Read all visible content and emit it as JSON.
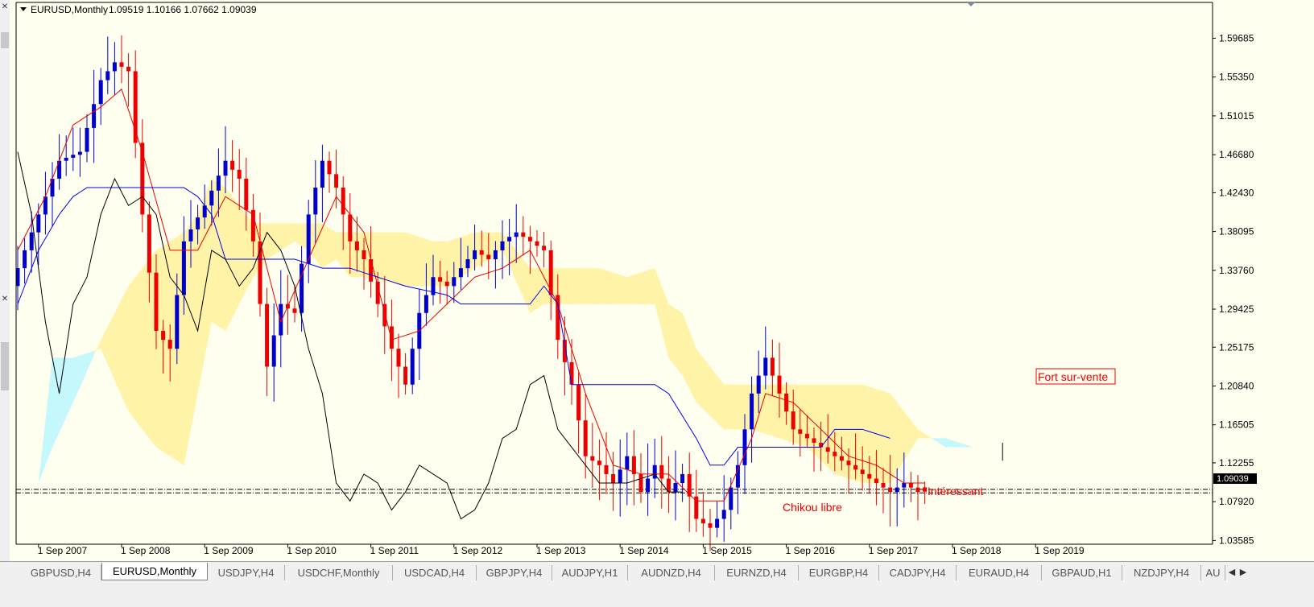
{
  "chart_header": {
    "symbol": "EURUSD,Monthly",
    "ohlc": "1.09519 1.10166 1.07662 1.09039"
  },
  "current_price_label": "1.09039",
  "tabs": [
    {
      "label": "GBPUSD,H4",
      "active": false
    },
    {
      "label": "EURUSD,Monthly",
      "active": true
    },
    {
      "label": "USDJPY,H4",
      "active": false
    },
    {
      "label": "USDCHF,Monthly",
      "active": false
    },
    {
      "label": "USDCAD,H4",
      "active": false
    },
    {
      "label": "GBPJPY,H4",
      "active": false
    },
    {
      "label": "AUDJPY,H1",
      "active": false
    },
    {
      "label": "AUDNZD,H4",
      "active": false
    },
    {
      "label": "EURNZD,H4",
      "active": false
    },
    {
      "label": "EURGBP,H4",
      "active": false
    },
    {
      "label": "CADJPY,H4",
      "active": false
    },
    {
      "label": "EURAUD,H4",
      "active": false
    },
    {
      "label": "GBPAUD,H1",
      "active": false
    },
    {
      "label": "NZDJPY,H4",
      "active": false
    },
    {
      "label": "AU",
      "active": false
    }
  ],
  "annotations": {
    "fort": "Fort sur-vente",
    "chikou": "Chikou libre",
    "interessant": "Intéressant"
  },
  "colors": {
    "bull": "#0000cc",
    "bear": "#ee0000",
    "tenkan": "#ee0000",
    "kijun": "#0000ee",
    "chikou": "#000000",
    "kumo_bear": "#fff3a8",
    "kumo_bull": "#c4f8fc",
    "background": "#fffff0"
  },
  "chart_data": {
    "type": "candlestick",
    "title": "EURUSD,Monthly",
    "xlabel": "",
    "ylabel": "",
    "ylim": [
      1.02,
      1.61
    ],
    "y_ticks": [
      "1.59685",
      "1.55350",
      "1.51015",
      "1.46680",
      "1.42430",
      "1.38095",
      "1.33760",
      "1.29425",
      "1.25175",
      "1.20840",
      "1.16505",
      "1.12255",
      "1.07920",
      "1.03585"
    ],
    "x_ticks": [
      "1 Sep 2007",
      "1 Sep 2008",
      "1 Sep 2009",
      "1 Sep 2010",
      "1 Sep 2011",
      "1 Sep 2012",
      "1 Sep 2013",
      "1 Sep 2014",
      "1 Sep 2015",
      "1 Sep 2016",
      "1 Sep 2017",
      "1 Sep 2018",
      "1 Sep 2019"
    ],
    "start": "2007-06",
    "close_anchors": [
      [
        0,
        1.34
      ],
      [
        3,
        1.4
      ],
      [
        6,
        1.46
      ],
      [
        9,
        1.47
      ],
      [
        12,
        1.55
      ],
      [
        14,
        1.57
      ],
      [
        16,
        1.56
      ],
      [
        18,
        1.4
      ],
      [
        20,
        1.27
      ],
      [
        22,
        1.25
      ],
      [
        24,
        1.37
      ],
      [
        27,
        1.41
      ],
      [
        30,
        1.46
      ],
      [
        32,
        1.44
      ],
      [
        34,
        1.37
      ],
      [
        36,
        1.23
      ],
      [
        38,
        1.3
      ],
      [
        40,
        1.29
      ],
      [
        42,
        1.4
      ],
      [
        44,
        1.46
      ],
      [
        46,
        1.43
      ],
      [
        48,
        1.37
      ],
      [
        50,
        1.35
      ],
      [
        52,
        1.3
      ],
      [
        54,
        1.25
      ],
      [
        56,
        1.21
      ],
      [
        58,
        1.29
      ],
      [
        60,
        1.33
      ],
      [
        62,
        1.32
      ],
      [
        64,
        1.34
      ],
      [
        66,
        1.36
      ],
      [
        68,
        1.35
      ],
      [
        70,
        1.37
      ],
      [
        72,
        1.38
      ],
      [
        74,
        1.37
      ],
      [
        76,
        1.36
      ],
      [
        78,
        1.26
      ],
      [
        80,
        1.21
      ],
      [
        82,
        1.13
      ],
      [
        84,
        1.12
      ],
      [
        86,
        1.1
      ],
      [
        88,
        1.13
      ],
      [
        90,
        1.09
      ],
      [
        92,
        1.12
      ],
      [
        94,
        1.09
      ],
      [
        96,
        1.11
      ],
      [
        98,
        1.06
      ],
      [
        100,
        1.05
      ],
      [
        102,
        1.07
      ],
      [
        104,
        1.12
      ],
      [
        106,
        1.2
      ],
      [
        108,
        1.24
      ],
      [
        110,
        1.2
      ],
      [
        112,
        1.16
      ],
      [
        114,
        1.15
      ],
      [
        116,
        1.14
      ],
      [
        118,
        1.13
      ],
      [
        120,
        1.12
      ],
      [
        122,
        1.11
      ],
      [
        124,
        1.1
      ],
      [
        126,
        1.09
      ],
      [
        128,
        1.1
      ],
      [
        130,
        1.09
      ],
      [
        131,
        1.09039
      ]
    ],
    "last_candle": {
      "open": 1.09519,
      "high": 1.10166,
      "low": 1.07662,
      "close": 1.09039
    },
    "lines": [
      {
        "name": "Tenkan",
        "anchors": [
          [
            0,
            1.36
          ],
          [
            4,
            1.42
          ],
          [
            8,
            1.5
          ],
          [
            12,
            1.52
          ],
          [
            15,
            1.54
          ],
          [
            18,
            1.47
          ],
          [
            22,
            1.36
          ],
          [
            26,
            1.36
          ],
          [
            30,
            1.42
          ],
          [
            34,
            1.4
          ],
          [
            38,
            1.28
          ],
          [
            42,
            1.35
          ],
          [
            46,
            1.42
          ],
          [
            50,
            1.38
          ],
          [
            54,
            1.26
          ],
          [
            58,
            1.27
          ],
          [
            62,
            1.3
          ],
          [
            66,
            1.33
          ],
          [
            70,
            1.34
          ],
          [
            74,
            1.36
          ],
          [
            78,
            1.3
          ],
          [
            82,
            1.2
          ],
          [
            86,
            1.12
          ],
          [
            90,
            1.11
          ],
          [
            94,
            1.11
          ],
          [
            98,
            1.08
          ],
          [
            102,
            1.08
          ],
          [
            106,
            1.15
          ],
          [
            108,
            1.2
          ],
          [
            112,
            1.19
          ],
          [
            116,
            1.16
          ],
          [
            120,
            1.13
          ],
          [
            124,
            1.12
          ],
          [
            128,
            1.1
          ],
          [
            131,
            1.1
          ]
        ]
      },
      {
        "name": "Kijun",
        "anchors": [
          [
            0,
            1.3
          ],
          [
            3,
            1.36
          ],
          [
            6,
            1.4
          ],
          [
            8,
            1.42
          ],
          [
            10,
            1.43
          ],
          [
            24,
            1.43
          ],
          [
            26,
            1.42
          ],
          [
            28,
            1.4
          ],
          [
            30,
            1.35
          ],
          [
            40,
            1.35
          ],
          [
            44,
            1.34
          ],
          [
            48,
            1.34
          ],
          [
            52,
            1.33
          ],
          [
            56,
            1.32
          ],
          [
            62,
            1.31
          ],
          [
            64,
            1.3
          ],
          [
            66,
            1.3
          ],
          [
            70,
            1.3
          ],
          [
            74,
            1.3
          ],
          [
            76,
            1.32
          ],
          [
            78,
            1.3
          ],
          [
            80,
            1.21
          ],
          [
            92,
            1.21
          ],
          [
            94,
            1.2
          ],
          [
            98,
            1.15
          ],
          [
            100,
            1.12
          ],
          [
            102,
            1.12
          ],
          [
            104,
            1.14
          ],
          [
            106,
            1.14
          ],
          [
            116,
            1.14
          ],
          [
            118,
            1.16
          ],
          [
            122,
            1.16
          ],
          [
            126,
            1.15
          ]
        ]
      },
      {
        "name": "Chikou",
        "anchors": [
          [
            0,
            1.47
          ],
          [
            2,
            1.4
          ],
          [
            4,
            1.28
          ],
          [
            6,
            1.2
          ],
          [
            8,
            1.3
          ],
          [
            10,
            1.33
          ],
          [
            12,
            1.4
          ],
          [
            14,
            1.44
          ],
          [
            16,
            1.41
          ],
          [
            18,
            1.42
          ],
          [
            20,
            1.4
          ],
          [
            22,
            1.33
          ],
          [
            24,
            1.31
          ],
          [
            26,
            1.27
          ],
          [
            28,
            1.36
          ],
          [
            30,
            1.35
          ],
          [
            32,
            1.32
          ],
          [
            34,
            1.34
          ],
          [
            36,
            1.38
          ],
          [
            38,
            1.36
          ],
          [
            40,
            1.32
          ],
          [
            42,
            1.25
          ],
          [
            44,
            1.2
          ],
          [
            46,
            1.1
          ],
          [
            48,
            1.08
          ],
          [
            50,
            1.11
          ],
          [
            52,
            1.1
          ],
          [
            54,
            1.07
          ],
          [
            56,
            1.09
          ],
          [
            58,
            1.12
          ],
          [
            60,
            1.11
          ],
          [
            62,
            1.1
          ],
          [
            64,
            1.06
          ],
          [
            66,
            1.07
          ],
          [
            68,
            1.1
          ],
          [
            70,
            1.15
          ],
          [
            72,
            1.16
          ],
          [
            74,
            1.21
          ],
          [
            76,
            1.22
          ],
          [
            78,
            1.16
          ],
          [
            80,
            1.14
          ],
          [
            82,
            1.12
          ],
          [
            84,
            1.1
          ],
          [
            88,
            1.1
          ],
          [
            92,
            1.11
          ],
          [
            94,
            1.09
          ],
          [
            96,
            1.09
          ]
        ]
      }
    ],
    "kumo": {
      "upper": [
        [
          0,
          1.1
        ],
        [
          3,
          1.1
        ],
        [
          5,
          1.14
        ],
        [
          8,
          1.19
        ],
        [
          12,
          1.26
        ],
        [
          16,
          1.32
        ],
        [
          20,
          1.36
        ],
        [
          24,
          1.38
        ],
        [
          26,
          1.4
        ],
        [
          28,
          1.44
        ],
        [
          30,
          1.43
        ],
        [
          34,
          1.39
        ],
        [
          36,
          1.39
        ],
        [
          40,
          1.39
        ],
        [
          42,
          1.39
        ],
        [
          44,
          1.39
        ],
        [
          46,
          1.38
        ],
        [
          48,
          1.38
        ],
        [
          50,
          1.38
        ],
        [
          56,
          1.38
        ],
        [
          60,
          1.37
        ],
        [
          62,
          1.37
        ],
        [
          66,
          1.38
        ],
        [
          70,
          1.38
        ],
        [
          74,
          1.34
        ],
        [
          76,
          1.34
        ],
        [
          80,
          1.34
        ],
        [
          84,
          1.34
        ],
        [
          88,
          1.33
        ],
        [
          92,
          1.34
        ],
        [
          94,
          1.3
        ],
        [
          96,
          1.29
        ],
        [
          98,
          1.25
        ],
        [
          102,
          1.21
        ],
        [
          106,
          1.21
        ],
        [
          110,
          1.21
        ],
        [
          114,
          1.21
        ],
        [
          118,
          1.21
        ],
        [
          122,
          1.21
        ],
        [
          126,
          1.2
        ],
        [
          130,
          1.16
        ],
        [
          134,
          1.14
        ],
        [
          138,
          1.14
        ],
        [
          142,
          1.13
        ]
      ],
      "lower": [
        [
          0,
          1.1
        ],
        [
          3,
          1.1
        ],
        [
          5,
          1.24
        ],
        [
          8,
          1.24
        ],
        [
          12,
          1.25
        ],
        [
          16,
          1.18
        ],
        [
          20,
          1.14
        ],
        [
          24,
          1.12
        ],
        [
          26,
          1.2
        ],
        [
          28,
          1.28
        ],
        [
          30,
          1.27
        ],
        [
          34,
          1.33
        ],
        [
          36,
          1.35
        ],
        [
          40,
          1.37
        ],
        [
          42,
          1.36
        ],
        [
          44,
          1.34
        ],
        [
          46,
          1.35
        ],
        [
          48,
          1.33
        ],
        [
          50,
          1.33
        ],
        [
          56,
          1.32
        ],
        [
          60,
          1.32
        ],
        [
          62,
          1.32
        ],
        [
          66,
          1.34
        ],
        [
          70,
          1.36
        ],
        [
          74,
          1.29
        ],
        [
          76,
          1.3
        ],
        [
          80,
          1.3
        ],
        [
          84,
          1.3
        ],
        [
          88,
          1.3
        ],
        [
          92,
          1.3
        ],
        [
          94,
          1.24
        ],
        [
          96,
          1.22
        ],
        [
          98,
          1.19
        ],
        [
          102,
          1.16
        ],
        [
          106,
          1.16
        ],
        [
          110,
          1.15
        ],
        [
          114,
          1.14
        ],
        [
          118,
          1.11
        ],
        [
          122,
          1.1
        ],
        [
          126,
          1.1
        ],
        [
          130,
          1.15
        ],
        [
          134,
          1.15
        ],
        [
          138,
          1.14
        ],
        [
          142,
          1.13
        ]
      ]
    },
    "hlines": [
      1.093,
      1.089
    ]
  }
}
